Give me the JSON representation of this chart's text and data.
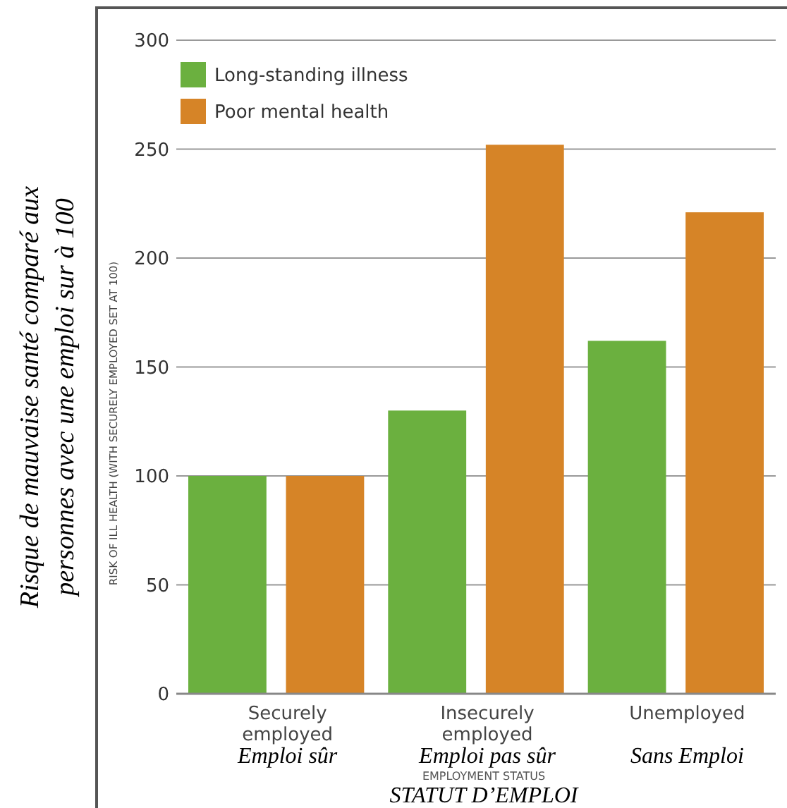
{
  "chart_data": {
    "type": "bar",
    "xlabel": "EMPLOYMENT STATUS",
    "ylabel": "RISK OF ILL HEALTH (WITH SECURELY EMPLOYED SET AT 100)",
    "categories": [
      "Securely employed",
      "Insecurely employed",
      "Unemployed"
    ],
    "series": [
      {
        "name": "Long-standing illness",
        "color": "#6bb03f",
        "values": [
          100,
          130,
          162
        ]
      },
      {
        "name": "Poor mental health",
        "color": "#d68427",
        "values": [
          100,
          252,
          221
        ]
      }
    ],
    "ylim": [
      0,
      300
    ],
    "yticks": [
      0,
      50,
      100,
      150,
      200,
      250,
      300
    ],
    "grid": "y",
    "legend": "top left",
    "annotations": [
      "Risque de mauvaise santé comparé aux personnes avec une emploi sur à 100",
      "Emploi sûr",
      "Emploi pas sûr",
      "Sans Emploi",
      "STATUT D’EMPLOI"
    ]
  }
}
